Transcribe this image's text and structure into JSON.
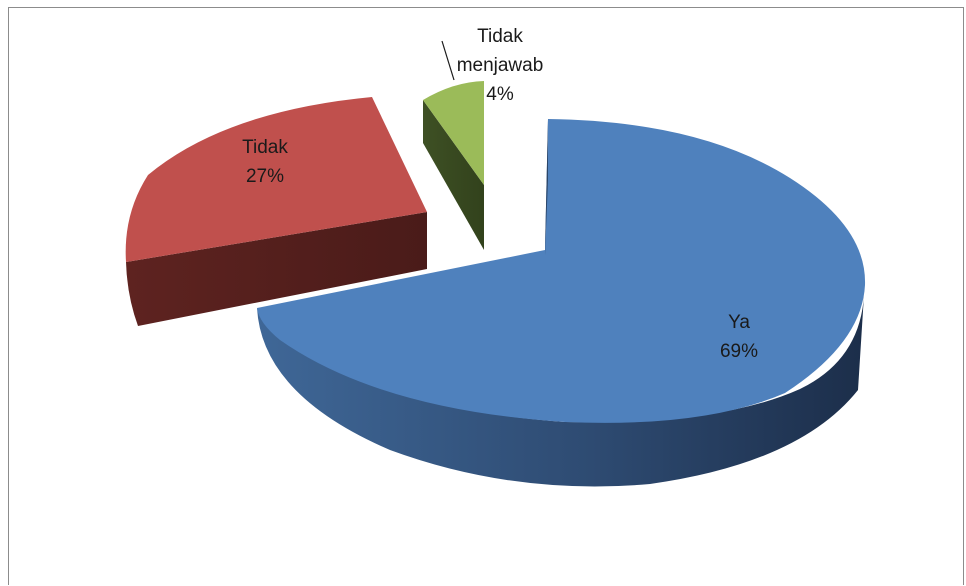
{
  "chart_data": {
    "type": "pie",
    "title": "",
    "categories": [
      "Ya",
      "Tidak",
      "Tidak menjawab"
    ],
    "values": [
      69,
      27,
      4
    ],
    "labels": [
      {
        "name_lines": [
          "Ya"
        ],
        "pct": "69%"
      },
      {
        "name_lines": [
          "Tidak"
        ],
        "pct": "27%"
      },
      {
        "name_lines": [
          "Tidak",
          "menjawab"
        ],
        "pct": "4%"
      }
    ],
    "colors": {
      "Ya": "#4f81bd",
      "Tidak": "#c0504d",
      "Tidak menjawab": "#9bbb59"
    },
    "style": "3d-exploded",
    "legend": "none"
  }
}
